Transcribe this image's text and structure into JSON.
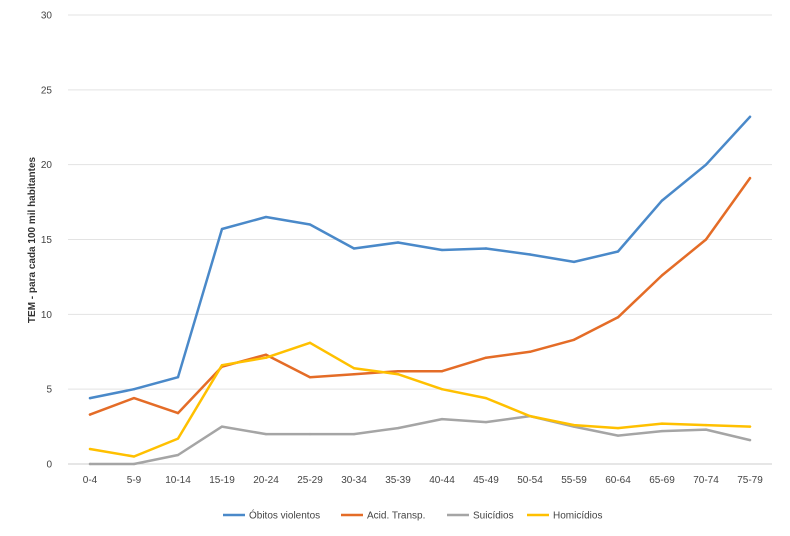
{
  "chart_data": {
    "type": "line",
    "title": "",
    "xlabel": "",
    "ylabel": "TEM - para cada 100 mil habitantes",
    "ylim": [
      0,
      30
    ],
    "yticks": [
      0,
      5,
      10,
      15,
      20,
      25,
      30
    ],
    "grid": true,
    "legend_position": "bottom",
    "categories": [
      "0-4",
      "5-9",
      "10-14",
      "15-19",
      "20-24",
      "25-29",
      "30-34",
      "35-39",
      "40-44",
      "45-49",
      "50-54",
      "55-59",
      "60-64",
      "65-69",
      "70-74",
      "75-79"
    ],
    "series": [
      {
        "name": "Óbitos violentos",
        "color": "#4a89c9",
        "values": [
          4.4,
          5.0,
          5.8,
          15.7,
          16.5,
          16.0,
          14.4,
          14.8,
          14.3,
          14.4,
          14.0,
          13.5,
          14.2,
          17.6,
          20.0,
          23.2
        ]
      },
      {
        "name": "Acid. Transp.",
        "color": "#e46c27",
        "values": [
          3.3,
          4.4,
          3.4,
          6.5,
          7.3,
          5.8,
          6.0,
          6.2,
          6.2,
          7.1,
          7.5,
          8.3,
          9.8,
          12.6,
          15.0,
          19.1
        ]
      },
      {
        "name": "Suicídios",
        "color": "#a5a5a5",
        "values": [
          0.0,
          0.0,
          0.6,
          2.5,
          2.0,
          2.0,
          2.0,
          2.4,
          3.0,
          2.8,
          3.2,
          2.5,
          1.9,
          2.2,
          2.3,
          1.6
        ]
      },
      {
        "name": "Homicídios",
        "color": "#ffc000",
        "values": [
          1.0,
          0.5,
          1.7,
          6.6,
          7.1,
          8.1,
          6.4,
          6.0,
          5.0,
          4.4,
          3.2,
          2.6,
          2.4,
          2.7,
          2.6,
          2.5
        ]
      }
    ]
  }
}
